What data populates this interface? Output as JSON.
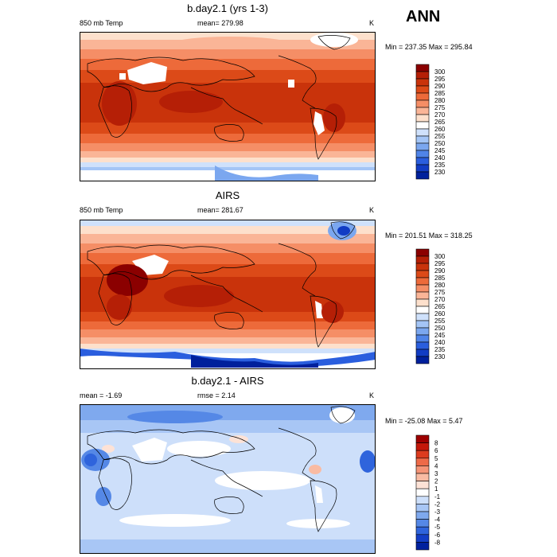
{
  "figure": {
    "season": "ANN"
  },
  "panels": [
    {
      "title": "b.day2.1 (yrs 1-3)",
      "left_label": "850 mb Temp",
      "center_label": "mean= 279.98",
      "units": "K",
      "minmax": "Min = 237.35 Max = 295.84",
      "colorbar": {
        "labels": [
          "300",
          "295",
          "290",
          "285",
          "280",
          "275",
          "270",
          "265",
          "260",
          "255",
          "250",
          "245",
          "240",
          "235",
          "230"
        ],
        "colors": [
          "#8b0000",
          "#b51f06",
          "#c9330b",
          "#dc4a18",
          "#ed6a3a",
          "#f58e66",
          "#fab597",
          "#fde0cc",
          "#ffffff",
          "#cfe1fb",
          "#a4c5f6",
          "#7ba7ef",
          "#4f84e8",
          "#2a5ede",
          "#113cc4",
          "#00209c"
        ]
      },
      "chart_data": {
        "type": "heatmap",
        "title": "b.day2.1 (yrs 1-3)",
        "variable": "850 mb Temp",
        "mean": 279.98,
        "min": 237.35,
        "max": 295.84,
        "units": "K",
        "contour_levels": [
          230,
          235,
          240,
          245,
          250,
          255,
          260,
          265,
          270,
          275,
          280,
          285,
          290,
          295,
          300
        ]
      }
    },
    {
      "title": "AIRS",
      "left_label": "850 mb Temp",
      "center_label": "mean= 281.67",
      "units": "K",
      "minmax": "Min = 201.51 Max = 318.25",
      "colorbar": {
        "labels": [
          "300",
          "295",
          "290",
          "285",
          "280",
          "275",
          "270",
          "265",
          "260",
          "255",
          "250",
          "245",
          "240",
          "235",
          "230"
        ],
        "colors": [
          "#8b0000",
          "#b51f06",
          "#c9330b",
          "#dc4a18",
          "#ed6a3a",
          "#f58e66",
          "#fab597",
          "#fde0cc",
          "#ffffff",
          "#cfe1fb",
          "#a4c5f6",
          "#7ba7ef",
          "#4f84e8",
          "#2a5ede",
          "#113cc4",
          "#00209c"
        ]
      },
      "chart_data": {
        "type": "heatmap",
        "title": "AIRS",
        "variable": "850 mb Temp",
        "mean": 281.67,
        "min": 201.51,
        "max": 318.25,
        "units": "K",
        "contour_levels": [
          230,
          235,
          240,
          245,
          250,
          255,
          260,
          265,
          270,
          275,
          280,
          285,
          290,
          295,
          300
        ]
      }
    },
    {
      "title": "b.day2.1 - AIRS",
      "left_label": "mean =  -1.69",
      "center_label": "rmse =   2.14",
      "units": "K",
      "minmax": "Min = -25.08 Max =   5.47",
      "colorbar": {
        "labels": [
          "8",
          "6",
          "5",
          "4",
          "3",
          "2",
          "1",
          "-1",
          "-2",
          "-3",
          "-4",
          "-5",
          "-6",
          "-8"
        ],
        "colors": [
          "#9e0000",
          "#c4180a",
          "#dc3b1e",
          "#ee6a48",
          "#f59477",
          "#f9bba3",
          "#fde2d6",
          "#ffffff",
          "#cddffa",
          "#a8c6f5",
          "#7fa9ee",
          "#5588e6",
          "#2f64dc",
          "#133ec6",
          "#00219e"
        ]
      },
      "chart_data": {
        "type": "heatmap",
        "title": "b.day2.1 - AIRS",
        "mean": -1.69,
        "rmse": 2.14,
        "min": -25.08,
        "max": 5.47,
        "units": "K",
        "contour_levels": [
          -8,
          -6,
          -5,
          -4,
          -3,
          -2,
          -1,
          1,
          2,
          3,
          4,
          5,
          6,
          8
        ]
      }
    }
  ]
}
